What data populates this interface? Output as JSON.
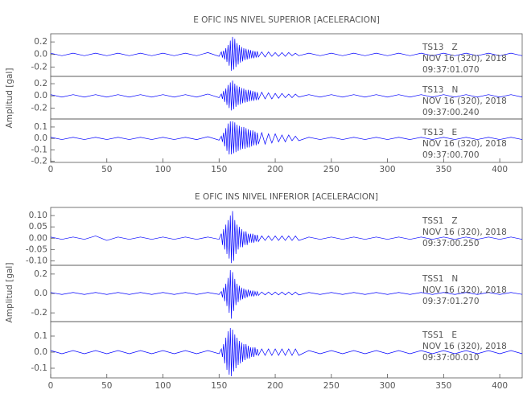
{
  "chart_data": [
    {
      "type": "line",
      "title": "E OFIC INS NIVEL SUPERIOR [ACELERACION]",
      "y_label": "Amplitud [gal]",
      "xlim": [
        0,
        420
      ],
      "xticks": [
        0,
        50,
        100,
        150,
        200,
        250,
        300,
        350,
        400
      ],
      "x": [
        0,
        10,
        20,
        30,
        40,
        50,
        60,
        70,
        80,
        90,
        100,
        110,
        120,
        130,
        140,
        150,
        152,
        153,
        154,
        155,
        156,
        157,
        158,
        159,
        160,
        161,
        162,
        163,
        164,
        165,
        166,
        167,
        168,
        169,
        170,
        171,
        172,
        173,
        174,
        175,
        176,
        177,
        178,
        179,
        180,
        181,
        182,
        183,
        184,
        185,
        188,
        191,
        194,
        197,
        200,
        203,
        206,
        209,
        212,
        215,
        218,
        221,
        230,
        240,
        250,
        260,
        270,
        280,
        290,
        300,
        310,
        320,
        330,
        340,
        350,
        360,
        370,
        380,
        390,
        400,
        410,
        420
      ],
      "panels": [
        {
          "annotation": [
            "TS13   Z",
            "NOV 16 (320), 2018",
            "09:37:01.070"
          ],
          "color": "#0000ff",
          "ylim": [
            -0.35,
            0.33
          ],
          "yticks": [
            -0.2,
            {
              "value": 0,
              "label": "0.0"
            },
            0.2
          ],
          "values": [
            0.02,
            -0.02,
            0.02,
            -0.02,
            0.02,
            -0.02,
            0.02,
            -0.02,
            0.02,
            -0.02,
            0.02,
            -0.02,
            0.02,
            -0.02,
            0.03,
            -0.03,
            0.04,
            -0.05,
            0.06,
            -0.08,
            0.1,
            -0.12,
            0.15,
            -0.18,
            0.22,
            -0.26,
            0.28,
            -0.24,
            0.25,
            -0.2,
            0.18,
            -0.16,
            0.15,
            -0.13,
            0.12,
            -0.11,
            0.1,
            -0.09,
            0.09,
            -0.08,
            0.08,
            -0.07,
            0.07,
            -0.06,
            0.06,
            -0.06,
            0.05,
            -0.05,
            0.05,
            -0.04,
            0.04,
            -0.04,
            0.04,
            -0.03,
            0.03,
            -0.03,
            0.03,
            -0.03,
            0.03,
            -0.02,
            0.02,
            -0.02,
            0.02,
            -0.02,
            0.02,
            -0.02,
            0.02,
            -0.02,
            0.02,
            -0.02,
            0.02,
            -0.02,
            0.02,
            -0.02,
            0.02,
            -0.02,
            0.02,
            -0.02,
            0.02,
            -0.02,
            0.02,
            -0.02
          ]
        },
        {
          "annotation": [
            "TS13   N",
            "NOV 16 (320), 2018",
            "09:37:00.240"
          ],
          "color": "#0000ff",
          "ylim": [
            -0.38,
            0.32
          ],
          "yticks": [
            -0.2,
            {
              "value": 0,
              "label": "0.0"
            },
            0.2
          ],
          "values": [
            0.02,
            -0.02,
            0.02,
            -0.02,
            0.02,
            -0.02,
            0.02,
            -0.02,
            0.02,
            -0.02,
            0.02,
            -0.02,
            0.02,
            -0.02,
            0.03,
            -0.03,
            0.03,
            -0.05,
            0.08,
            -0.1,
            0.12,
            -0.15,
            0.18,
            -0.2,
            0.22,
            -0.24,
            0.25,
            -0.22,
            0.2,
            -0.18,
            0.17,
            -0.15,
            0.15,
            -0.14,
            0.13,
            -0.12,
            0.12,
            -0.11,
            0.1,
            -0.1,
            0.1,
            -0.09,
            0.09,
            -0.08,
            0.08,
            -0.08,
            0.07,
            -0.07,
            0.06,
            -0.06,
            0.06,
            -0.05,
            0.05,
            -0.05,
            0.04,
            -0.04,
            0.04,
            -0.03,
            0.03,
            -0.03,
            0.03,
            -0.02,
            0.02,
            -0.02,
            0.02,
            -0.02,
            0.02,
            -0.02,
            0.02,
            -0.02,
            0.02,
            -0.02,
            0.02,
            -0.02,
            0.02,
            -0.02,
            0.02,
            -0.02,
            0.02,
            -0.02,
            0.02,
            -0.02
          ]
        },
        {
          "annotation": [
            "TS13   E",
            "NOV 16 (320), 2018",
            "09:37:00.700"
          ],
          "color": "#0000ff",
          "ylim": [
            -0.21,
            0.17
          ],
          "yticks": [
            -0.2,
            -0.1,
            {
              "value": 0,
              "label": "0.0"
            },
            0.1
          ],
          "values": [
            0.01,
            -0.01,
            0.01,
            -0.01,
            0.01,
            -0.01,
            0.01,
            -0.01,
            0.01,
            -0.01,
            0.01,
            -0.01,
            0.01,
            -0.01,
            0.015,
            -0.015,
            0.02,
            -0.03,
            0.05,
            -0.07,
            0.09,
            -0.11,
            0.13,
            -0.14,
            0.15,
            -0.14,
            0.15,
            -0.13,
            0.14,
            -0.12,
            0.12,
            -0.11,
            0.11,
            -0.1,
            0.1,
            -0.09,
            0.1,
            -0.09,
            0.09,
            -0.08,
            0.08,
            -0.08,
            0.07,
            -0.07,
            0.07,
            -0.06,
            0.06,
            -0.06,
            0.05,
            -0.05,
            0.05,
            -0.05,
            0.04,
            -0.04,
            0.04,
            -0.03,
            0.03,
            -0.03,
            0.03,
            -0.02,
            0.02,
            -0.02,
            0.01,
            -0.01,
            0.01,
            -0.01,
            0.01,
            -0.01,
            0.01,
            -0.01,
            0.01,
            -0.01,
            0.01,
            -0.01,
            0.01,
            -0.01,
            0.01,
            -0.01,
            0.01,
            -0.01,
            0.01,
            -0.01
          ]
        }
      ]
    },
    {
      "type": "line",
      "title": "E OFIC INS NIVEL INFERIOR [ACELERACION]",
      "y_label": "Amplitud [gal]",
      "xlim": [
        0,
        420
      ],
      "xticks": [
        0,
        50,
        100,
        150,
        200,
        250,
        300,
        350,
        400
      ],
      "x": [
        0,
        10,
        20,
        30,
        40,
        50,
        60,
        70,
        80,
        90,
        100,
        110,
        120,
        130,
        140,
        150,
        152,
        153,
        154,
        155,
        156,
        157,
        158,
        159,
        160,
        161,
        162,
        163,
        164,
        165,
        166,
        167,
        168,
        169,
        170,
        171,
        172,
        173,
        174,
        175,
        176,
        177,
        178,
        179,
        180,
        181,
        182,
        183,
        184,
        185,
        188,
        191,
        194,
        197,
        200,
        203,
        206,
        209,
        212,
        215,
        218,
        221,
        230,
        240,
        250,
        260,
        270,
        280,
        290,
        300,
        310,
        320,
        330,
        340,
        350,
        360,
        370,
        380,
        390,
        400,
        410,
        420
      ],
      "panels": [
        {
          "annotation": [
            "TSS1   Z",
            "NOV 16 (320), 2018",
            "09:37:00.250"
          ],
          "color": "#0000ff",
          "ylim": [
            -0.12,
            0.136
          ],
          "yticks": [
            {
              "value": -0.1,
              "label": "-0.10"
            },
            -0.05,
            {
              "value": 0,
              "label": "0.00"
            },
            0.05,
            {
              "value": 0.1,
              "label": "0.10"
            }
          ],
          "values": [
            0.005,
            -0.005,
            0.005,
            -0.005,
            0.01,
            -0.01,
            0.005,
            -0.005,
            0.005,
            -0.005,
            0.005,
            -0.005,
            0.005,
            -0.005,
            0.005,
            -0.005,
            0.02,
            -0.03,
            0.04,
            -0.05,
            0.06,
            -0.07,
            0.08,
            -0.09,
            0.1,
            -0.11,
            0.12,
            -0.1,
            0.08,
            -0.07,
            0.06,
            -0.05,
            0.05,
            -0.04,
            0.04,
            -0.04,
            0.03,
            -0.03,
            0.03,
            -0.03,
            0.02,
            -0.02,
            0.02,
            -0.02,
            0.02,
            -0.02,
            0.015,
            -0.015,
            0.015,
            -0.015,
            0.01,
            -0.01,
            0.01,
            -0.01,
            0.01,
            -0.01,
            0.01,
            -0.01,
            0.01,
            -0.01,
            0.01,
            -0.01,
            0.005,
            -0.005,
            0.005,
            -0.005,
            0.005,
            -0.005,
            0.005,
            -0.005,
            0.005,
            -0.005,
            0.005,
            -0.005,
            0.005,
            -0.005,
            0.005,
            -0.005,
            0.005,
            -0.005,
            0.005,
            -0.005
          ]
        },
        {
          "annotation": [
            "TSS1   N",
            "NOV 16 (320), 2018",
            "09:37:01.270"
          ],
          "color": "#0000ff",
          "ylim": [
            -0.29,
            0.29
          ],
          "yticks": [
            -0.2,
            {
              "value": 0,
              "label": "0.0"
            },
            0.2
          ],
          "values": [
            0.01,
            -0.01,
            0.01,
            -0.01,
            0.01,
            -0.01,
            0.01,
            -0.01,
            0.01,
            -0.01,
            0.01,
            -0.01,
            0.01,
            -0.01,
            0.01,
            -0.01,
            0.02,
            -0.04,
            0.06,
            -0.08,
            0.1,
            -0.13,
            0.16,
            -0.2,
            0.24,
            -0.26,
            0.22,
            -0.18,
            0.15,
            -0.12,
            0.1,
            -0.09,
            0.08,
            -0.07,
            0.06,
            -0.06,
            0.05,
            -0.05,
            0.04,
            -0.04,
            0.04,
            -0.03,
            0.03,
            -0.03,
            0.03,
            -0.03,
            0.02,
            -0.02,
            0.02,
            -0.02,
            0.015,
            -0.015,
            0.015,
            -0.015,
            0.015,
            -0.015,
            0.015,
            -0.015,
            0.015,
            -0.015,
            0.015,
            -0.015,
            0.01,
            -0.01,
            0.01,
            -0.01,
            0.01,
            -0.01,
            0.01,
            -0.01,
            0.01,
            -0.01,
            0.01,
            -0.01,
            0.01,
            -0.01,
            0.01,
            -0.01,
            0.01,
            -0.01,
            0.01,
            -0.01
          ]
        },
        {
          "annotation": [
            "TSS1   E",
            "NOV 16 (320), 2018",
            "09:37:00.010"
          ],
          "color": "#0000ff",
          "ylim": [
            -0.16,
            0.19
          ],
          "yticks": [
            -0.1,
            {
              "value": 0,
              "label": "0.0"
            },
            0.1
          ],
          "values": [
            0.01,
            -0.01,
            0.01,
            -0.01,
            0.01,
            -0.01,
            0.01,
            -0.01,
            0.01,
            -0.01,
            0.01,
            -0.01,
            0.01,
            -0.01,
            0.01,
            -0.01,
            0.02,
            -0.03,
            0.05,
            -0.07,
            0.09,
            -0.11,
            0.13,
            -0.14,
            0.15,
            -0.15,
            0.14,
            -0.12,
            0.11,
            -0.1,
            0.09,
            -0.08,
            0.07,
            -0.07,
            0.06,
            -0.06,
            0.05,
            -0.05,
            0.05,
            -0.04,
            0.04,
            -0.04,
            0.03,
            -0.03,
            0.03,
            -0.03,
            0.03,
            -0.02,
            0.02,
            -0.02,
            0.02,
            -0.02,
            0.02,
            -0.02,
            0.02,
            -0.02,
            0.02,
            -0.02,
            0.02,
            -0.02,
            0.02,
            -0.02,
            0.01,
            -0.01,
            0.01,
            -0.01,
            0.01,
            -0.01,
            0.01,
            -0.01,
            0.01,
            -0.01,
            0.01,
            -0.01,
            0.01,
            -0.01,
            0.01,
            -0.01,
            0.01,
            -0.01,
            0.01,
            -0.01
          ]
        }
      ]
    }
  ]
}
